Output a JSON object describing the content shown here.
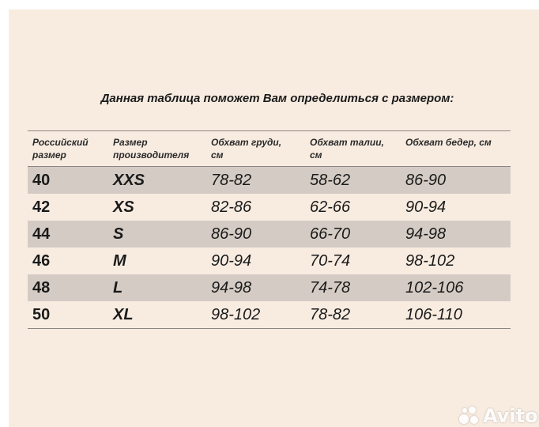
{
  "title": "Данная таблица поможет Вам определиться с размером:",
  "headers": [
    [
      "Российский",
      "размер"
    ],
    [
      "Размер",
      "производителя"
    ],
    [
      "Обхват груди,",
      "см"
    ],
    [
      "Обхват талии,",
      "см"
    ],
    [
      "Обхват бедер, см",
      ""
    ]
  ],
  "rows": [
    [
      "40",
      "XXS",
      "78-82",
      "58-62",
      "86-90"
    ],
    [
      "42",
      "XS",
      "82-86",
      "62-66",
      "90-94"
    ],
    [
      "44",
      "S",
      "86-90",
      "66-70",
      "94-98"
    ],
    [
      "46",
      "M",
      "90-94",
      "70-74",
      "98-102"
    ],
    [
      "48",
      "L",
      "94-98",
      "74-78",
      "102-106"
    ],
    [
      "50",
      "XL",
      "98-102",
      "78-82",
      "106-110"
    ]
  ],
  "watermark": "Avito",
  "colors": {
    "background": "#f8ece1",
    "row_shade": "#d4ccc4",
    "rule": "#8a8580"
  }
}
